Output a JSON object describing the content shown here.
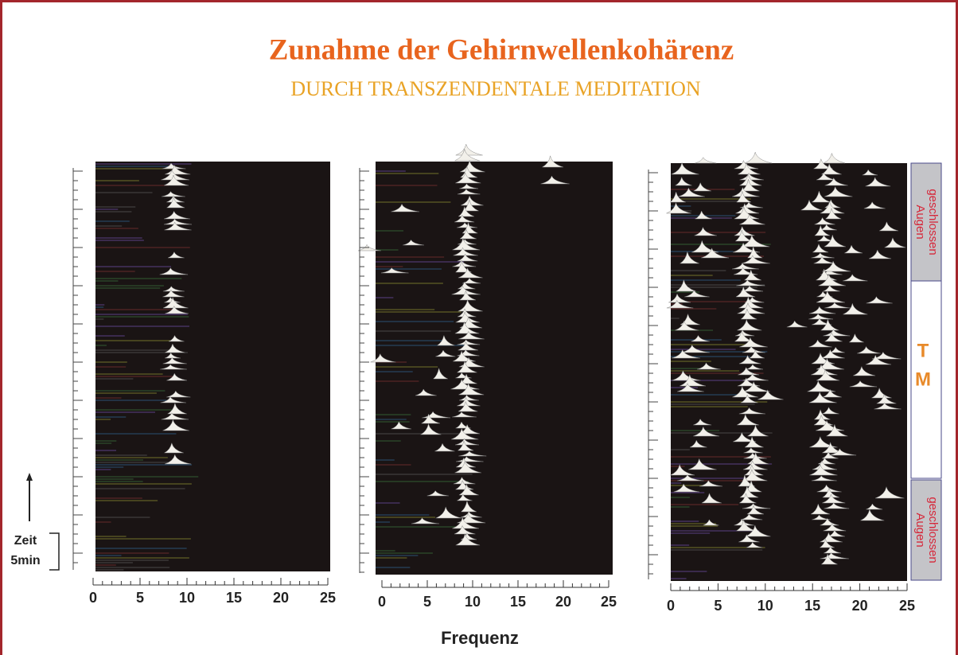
{
  "header": {
    "title": "Zunahme der Gehirnwellenkohärenz",
    "subtitle": "DURCH TRANSZENDENTALE MEDITATION"
  },
  "panels": [
    {
      "xticks": [
        0,
        5,
        10,
        15,
        20,
        25
      ]
    },
    {
      "xticks": [
        0,
        5,
        10,
        15,
        20,
        25
      ]
    },
    {
      "xticks": [
        0,
        5,
        10,
        15,
        20,
        25
      ]
    }
  ],
  "x_label": "Frequenz",
  "time_label": [
    "Zeit",
    "5min"
  ],
  "side_labels": {
    "top": [
      "Augen",
      "geschlossen"
    ],
    "middle": [
      "T",
      "M"
    ],
    "bottom": [
      "Augen",
      "geschlossen"
    ]
  }
}
